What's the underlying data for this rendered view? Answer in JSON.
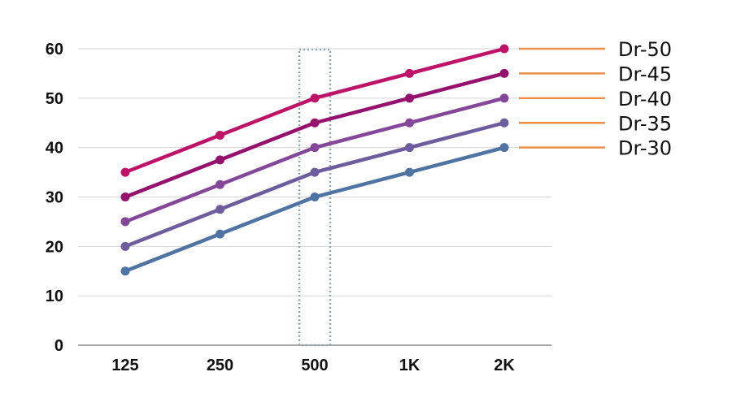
{
  "chart_data": {
    "type": "line",
    "title": "",
    "xlabel": "",
    "ylabel": "",
    "categories": [
      "125",
      "250",
      "500",
      "1K",
      "2K"
    ],
    "ylim": [
      0,
      60
    ],
    "yticks": [
      0,
      10,
      20,
      30,
      40,
      50,
      60
    ],
    "grid": "horizontal",
    "highlight_category": "500",
    "legend_position": "right",
    "series": [
      {
        "name": "Dr-50",
        "color": "#BE1368",
        "values": [
          35,
          42.5,
          50,
          55,
          60
        ]
      },
      {
        "name": "Dr-45",
        "color": "#96106E",
        "values": [
          30,
          37.5,
          45,
          50,
          55
        ]
      },
      {
        "name": "Dr-40",
        "color": "#84479A",
        "values": [
          25,
          32.5,
          40,
          45,
          50
        ]
      },
      {
        "name": "Dr-35",
        "color": "#6D5C9E",
        "values": [
          20,
          27.5,
          35,
          40,
          45
        ]
      },
      {
        "name": "Dr-30",
        "color": "#4F73A3",
        "values": [
          15,
          22.5,
          30,
          35,
          40
        ]
      }
    ],
    "legend_line_color": "#ED8F4C",
    "highlight_color": "#8FAAAD",
    "grid_color": "#D4D4D4",
    "axis_color": "#8C8C8C"
  }
}
